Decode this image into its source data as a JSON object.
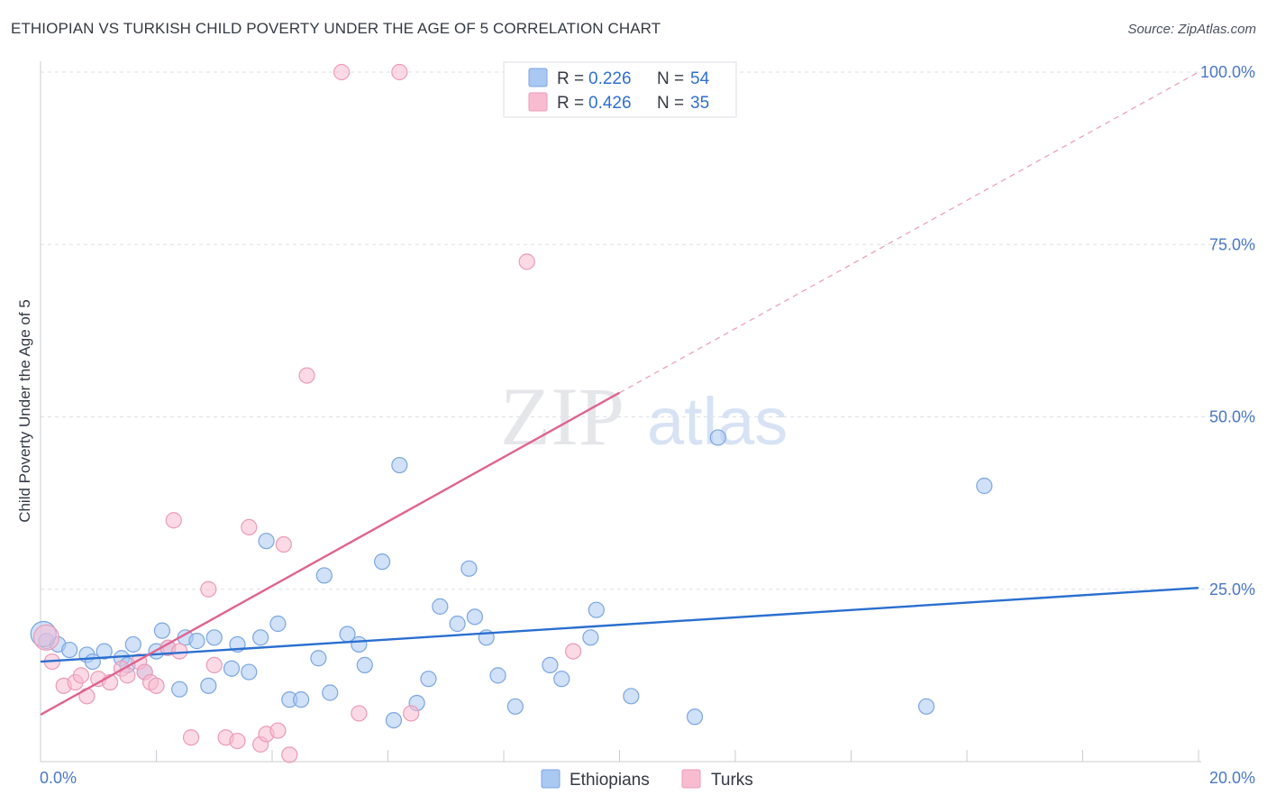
{
  "header": {
    "title": "ETHIOPIAN VS TURKISH CHILD POVERTY UNDER THE AGE OF 5 CORRELATION CHART",
    "source": "Source: ZipAtlas.com"
  },
  "watermark": {
    "zip": "ZIP",
    "atlas": "atlas"
  },
  "colors": {
    "ethiopians_fill": "#a9c8f2",
    "ethiopians_stroke": "#7aa6e0",
    "ethiopians_line": "#2a6fcf",
    "turks_fill": "#f7bcd0",
    "turks_stroke": "#ec9ab6",
    "turks_line": "#e0638f",
    "tick_label": "#4a78c6",
    "grid": "#dcdfe4"
  },
  "legend": {
    "r_label": "R =",
    "n_label": "N =",
    "rows": [
      {
        "series": "Ethiopians",
        "r": "0.226",
        "n": "54"
      },
      {
        "series": "Turks",
        "r": "0.426",
        "n": "35"
      }
    ]
  },
  "chart_data": {
    "type": "scatter",
    "xlabel": "",
    "ylabel": "Child Poverty Under the Age of 5",
    "xlim": [
      0,
      20
    ],
    "ylim": [
      0,
      100
    ],
    "x_tick_labels": [
      "0.0%",
      "20.0%"
    ],
    "y_tick_labels": [
      "25.0%",
      "50.0%",
      "75.0%",
      "100.0%"
    ],
    "y_ticks": [
      25,
      50,
      75,
      100
    ],
    "grid": true,
    "legend_position": "top-center",
    "series": [
      {
        "name": "Ethiopians",
        "points": [
          [
            0.1,
            17.5
          ],
          [
            0.3,
            17.0
          ],
          [
            0.5,
            16.2
          ],
          [
            0.8,
            15.5
          ],
          [
            0.9,
            14.5
          ],
          [
            1.1,
            16.0
          ],
          [
            1.4,
            15.0
          ],
          [
            1.5,
            14.0
          ],
          [
            1.6,
            17.0
          ],
          [
            1.8,
            13.0
          ],
          [
            2.0,
            16.0
          ],
          [
            2.1,
            19.0
          ],
          [
            2.2,
            16.5
          ],
          [
            2.4,
            10.5
          ],
          [
            2.5,
            18.0
          ],
          [
            2.7,
            17.5
          ],
          [
            2.9,
            11.0
          ],
          [
            3.0,
            18.0
          ],
          [
            3.3,
            13.5
          ],
          [
            3.4,
            17.0
          ],
          [
            3.6,
            13.0
          ],
          [
            3.8,
            18.0
          ],
          [
            3.9,
            32.0
          ],
          [
            4.1,
            20.0
          ],
          [
            4.3,
            9.0
          ],
          [
            4.5,
            9.0
          ],
          [
            4.8,
            15.0
          ],
          [
            4.9,
            27.0
          ],
          [
            5.0,
            10.0
          ],
          [
            5.3,
            18.5
          ],
          [
            5.5,
            17.0
          ],
          [
            5.6,
            14.0
          ],
          [
            5.9,
            29.0
          ],
          [
            6.1,
            6.0
          ],
          [
            6.2,
            43.0
          ],
          [
            6.5,
            8.5
          ],
          [
            6.7,
            12.0
          ],
          [
            6.9,
            22.5
          ],
          [
            7.2,
            20.0
          ],
          [
            7.4,
            28.0
          ],
          [
            7.5,
            21.0
          ],
          [
            7.7,
            18.0
          ],
          [
            7.9,
            12.5
          ],
          [
            8.2,
            8.0
          ],
          [
            8.8,
            14.0
          ],
          [
            9.0,
            12.0
          ],
          [
            9.5,
            18.0
          ],
          [
            9.6,
            22.0
          ],
          [
            10.2,
            9.5
          ],
          [
            11.3,
            6.5
          ],
          [
            11.7,
            47.0
          ],
          [
            15.3,
            8.0
          ],
          [
            16.3,
            40.0
          ],
          [
            0.05,
            18.5
          ]
        ],
        "trend": {
          "x": [
            0,
            20
          ],
          "y": [
            14.5,
            25.2
          ]
        }
      },
      {
        "name": "Turks",
        "points": [
          [
            0.1,
            18.0
          ],
          [
            0.2,
            14.5
          ],
          [
            0.4,
            11.0
          ],
          [
            0.6,
            11.5
          ],
          [
            0.7,
            12.5
          ],
          [
            0.8,
            9.5
          ],
          [
            1.0,
            12.0
          ],
          [
            1.2,
            11.5
          ],
          [
            1.4,
            13.5
          ],
          [
            1.5,
            12.5
          ],
          [
            1.7,
            14.5
          ],
          [
            1.8,
            13.0
          ],
          [
            1.9,
            11.5
          ],
          [
            2.0,
            11.0
          ],
          [
            2.2,
            16.5
          ],
          [
            2.3,
            35.0
          ],
          [
            2.4,
            16.0
          ],
          [
            2.6,
            3.5
          ],
          [
            2.9,
            25.0
          ],
          [
            3.0,
            14.0
          ],
          [
            3.2,
            3.5
          ],
          [
            3.4,
            3.0
          ],
          [
            3.6,
            34.0
          ],
          [
            3.8,
            2.5
          ],
          [
            3.9,
            4.0
          ],
          [
            4.1,
            4.5
          ],
          [
            4.2,
            31.5
          ],
          [
            4.3,
            1.0
          ],
          [
            4.6,
            56.0
          ],
          [
            5.2,
            100.0
          ],
          [
            5.5,
            7.0
          ],
          [
            6.2,
            100.0
          ],
          [
            6.4,
            7.0
          ],
          [
            8.4,
            72.5
          ],
          [
            9.2,
            16.0
          ]
        ],
        "trend": {
          "x": [
            0,
            10
          ],
          "y": [
            6.8,
            53.5
          ]
        },
        "trend_extension": {
          "x": [
            10,
            20
          ],
          "y": [
            53.5,
            100
          ]
        }
      }
    ]
  },
  "bottom_legend": [
    "Ethiopians",
    "Turks"
  ]
}
